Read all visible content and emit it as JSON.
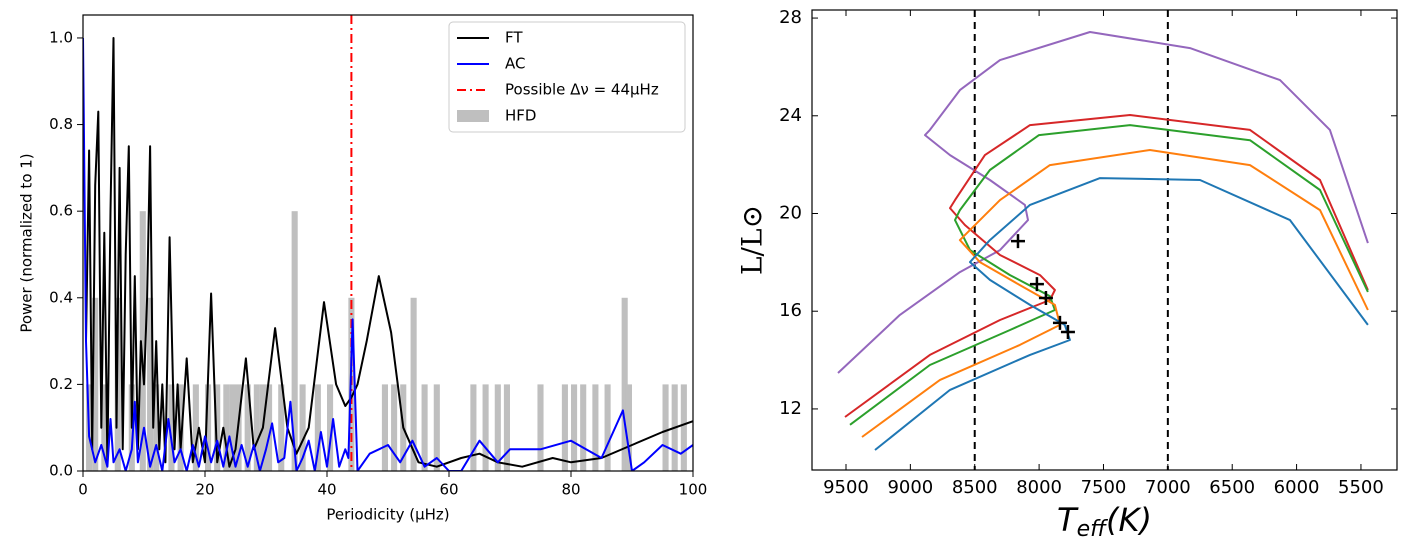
{
  "chart_data": [
    {
      "type": "line",
      "xlabel": "Periodicity (μHz)",
      "ylabel": "Power (normalized to 1)",
      "xlim": [
        0,
        100
      ],
      "ylim": [
        0,
        1.053
      ],
      "xticks": [
        0,
        20,
        40,
        60,
        80,
        100
      ],
      "yticks": [
        {
          "value": 0,
          "label": "0.0"
        },
        {
          "value": 0.2,
          "label": "0.2"
        },
        {
          "value": 0.4,
          "label": "0.4"
        },
        {
          "value": 0.6,
          "label": "0.6"
        },
        {
          "value": 0.8,
          "label": "0.8"
        },
        {
          "value": 1.0,
          "label": "1.0"
        }
      ],
      "legend": "upper right",
      "bars": {
        "name": "HFD",
        "color": "#bfbfbf",
        "x": [
          1,
          2,
          3.5,
          5.7,
          8,
          9.8,
          11,
          12,
          14.5,
          16,
          18.5,
          20.5,
          22,
          23.5,
          24.5,
          25.5,
          27,
          28.5,
          29.5,
          30.5,
          32.5,
          34.7,
          36,
          38.5,
          40.5,
          44,
          49.5,
          51,
          52.5,
          54.2,
          56,
          58,
          64,
          66,
          68,
          69.5,
          75,
          79,
          80.5,
          82,
          84,
          86,
          88.8,
          89.5,
          95.5,
          97,
          98.5
        ],
        "values": [
          0.2,
          0.4,
          0.2,
          0.4,
          0.2,
          0.6,
          0.4,
          0.2,
          0.2,
          0.2,
          0.2,
          0.2,
          0.2,
          0.2,
          0.2,
          0.2,
          0.2,
          0.2,
          0.2,
          0.2,
          0.2,
          0.6,
          0.2,
          0.2,
          0.2,
          0.4,
          0.2,
          0.2,
          0.2,
          0.4,
          0.2,
          0.2,
          0.2,
          0.2,
          0.2,
          0.2,
          0.2,
          0.2,
          0.2,
          0.2,
          0.2,
          0.2,
          0.4,
          0.2,
          0.2,
          0.2,
          0.2
        ]
      },
      "series": [
        {
          "name": "FT",
          "color": "#000000",
          "x": [
            0.5,
            1,
            1.5,
            2,
            2.5,
            3,
            3.5,
            4,
            4.5,
            5,
            5.5,
            6,
            6.5,
            7,
            7.5,
            8,
            8.5,
            9,
            9.5,
            10,
            10.5,
            11,
            11.5,
            12,
            12.5,
            13,
            13.5,
            14.2,
            15,
            15.5,
            16,
            17,
            18,
            19,
            20,
            21,
            22,
            23,
            24,
            25,
            26.7,
            28,
            29.5,
            31.5,
            33.5,
            35,
            37,
            39.5,
            41.5,
            43,
            44,
            45,
            46.5,
            48.5,
            50.5,
            52.5,
            55,
            58,
            62,
            65,
            68,
            72,
            77,
            80,
            85,
            90,
            95,
            100
          ],
          "values": [
            0.3,
            0.74,
            0.05,
            0.66,
            0.83,
            0.1,
            0.55,
            0.02,
            0.6,
            1.0,
            0.1,
            0.7,
            0.05,
            0.5,
            0.75,
            0.1,
            0.45,
            0.05,
            0.3,
            0.2,
            0.4,
            0.75,
            0.1,
            0.3,
            0.05,
            0.2,
            0.02,
            0.54,
            0.05,
            0.2,
            0.05,
            0.26,
            0.02,
            0.1,
            0.02,
            0.41,
            0.02,
            0.1,
            0.01,
            0.05,
            0.26,
            0.05,
            0.1,
            0.33,
            0.1,
            0.04,
            0.1,
            0.39,
            0.2,
            0.15,
            0.17,
            0.2,
            0.3,
            0.45,
            0.32,
            0.1,
            0.02,
            0.01,
            0.03,
            0.04,
            0.02,
            0.01,
            0.03,
            0.02,
            0.03,
            0.06,
            0.09,
            0.115
          ]
        },
        {
          "name": "AC",
          "color": "#0000ff",
          "x": [
            0,
            0.5,
            1,
            2,
            3,
            4,
            4.5,
            5,
            6,
            7,
            8,
            8.5,
            9,
            10,
            11,
            12,
            13,
            14,
            15,
            16,
            17,
            18,
            19,
            20,
            21,
            22,
            23,
            24,
            25,
            26,
            27,
            28,
            29,
            30,
            31,
            32,
            33,
            34,
            35,
            36,
            37,
            38,
            39,
            40,
            41,
            42,
            43,
            43.5,
            44.2,
            45,
            47,
            50,
            52,
            54,
            56,
            58,
            60,
            62,
            65,
            68,
            70,
            75,
            80,
            85,
            88.5,
            90,
            92,
            95,
            98,
            100
          ],
          "values": [
            1.0,
            0.3,
            0.08,
            0.02,
            0.06,
            0.01,
            0.12,
            0.02,
            0.05,
            0.0,
            0.05,
            0.16,
            0.02,
            0.1,
            0.01,
            0.06,
            0.0,
            0.12,
            0.02,
            0.05,
            0.0,
            0.06,
            0.01,
            0.08,
            0.02,
            0.07,
            0.01,
            0.08,
            0.01,
            0.06,
            0.01,
            0.06,
            0.0,
            0.05,
            0.11,
            0.02,
            0.03,
            0.16,
            0.0,
            0.03,
            0.07,
            0.0,
            0.09,
            0.01,
            0.12,
            0.01,
            0.05,
            0.03,
            0.35,
            0.0,
            0.04,
            0.06,
            0.02,
            0.07,
            0.01,
            0.03,
            0.0,
            0.0,
            0.07,
            0.02,
            0.05,
            0.05,
            0.07,
            0.03,
            0.14,
            0.0,
            0.02,
            0.06,
            0.04,
            0.06
          ]
        }
      ],
      "vlines": [
        {
          "x": 44,
          "name": "Possible Δν = 44μHz",
          "color": "#ff0000",
          "style": "dashdot"
        }
      ]
    },
    {
      "type": "line",
      "xlabel": {
        "main": "T",
        "sub": "eff",
        "unit": "(K)"
      },
      "ylabel": "L/L⊙",
      "xlim": [
        9764,
        5220
      ],
      "ylim": [
        9.5,
        28.33
      ],
      "xticks": [
        9500,
        9000,
        8500,
        8000,
        7500,
        7000,
        6500,
        6000,
        5500
      ],
      "yticks": [
        12,
        16,
        20,
        24,
        28
      ],
      "series": [
        {
          "color": "#9467bd",
          "x": [
            9562,
            9081,
            8615,
            8304,
            8086,
            8110,
            8382,
            8692,
            8886,
            8848,
            8615,
            8304,
            7605,
            6828,
            6129,
            5741,
            5446
          ],
          "values": [
            13.47,
            15.85,
            17.6,
            18.5,
            19.73,
            20.35,
            21.37,
            22.39,
            23.21,
            23.42,
            25.05,
            26.28,
            27.43,
            26.77,
            25.46,
            23.42,
            18.79
          ]
        },
        {
          "color": "#d62728",
          "x": [
            9508,
            8848,
            8304,
            7916,
            7877,
            7993,
            8304,
            8576,
            8692,
            8653,
            8421,
            8071,
            7294,
            6362,
            5818,
            5446
          ],
          "values": [
            11.67,
            14.21,
            15.64,
            16.46,
            16.87,
            17.48,
            18.3,
            19.53,
            20.22,
            20.55,
            22.39,
            23.62,
            24.03,
            23.42,
            21.37,
            16.87
          ]
        },
        {
          "color": "#2ca02c",
          "x": [
            9469,
            8848,
            8226,
            7877,
            7916,
            8226,
            8537,
            8653,
            8615,
            8382,
            8001,
            7294,
            6362,
            5818,
            5446
          ],
          "values": [
            11.35,
            13.8,
            15.23,
            16.05,
            16.62,
            17.48,
            18.5,
            19.73,
            20.14,
            21.78,
            23.21,
            23.62,
            23.0,
            20.96,
            16.79
          ]
        },
        {
          "color": "#ff7f0e",
          "x": [
            9376,
            8770,
            8149,
            7838,
            7877,
            8149,
            8460,
            8615,
            8304,
            7916,
            7139,
            6362,
            5818,
            5446
          ],
          "values": [
            10.85,
            13.19,
            14.62,
            15.44,
            16.26,
            17.07,
            18.01,
            18.91,
            20.55,
            21.98,
            22.6,
            21.98,
            20.14,
            16.05
          ]
        },
        {
          "color": "#1f77b4",
          "x": [
            9275,
            8692,
            8071,
            7761,
            7800,
            8071,
            8382,
            8537,
            8382,
            8071,
            7527,
            6750,
            6051,
            5446
          ],
          "values": [
            10.32,
            12.78,
            14.21,
            14.82,
            15.44,
            16.26,
            17.28,
            18.01,
            18.91,
            20.35,
            21.45,
            21.37,
            19.73,
            15.44
          ]
        }
      ],
      "markers": {
        "color": "#000000",
        "marker": "+",
        "x": [
          8164,
          8017,
          7947,
          7838,
          7776
        ],
        "values": [
          18.87,
          17.11,
          16.54,
          15.52,
          15.15
        ]
      },
      "vlines": [
        {
          "x": 8500,
          "color": "#000000",
          "style": "dashed"
        },
        {
          "x": 7000,
          "color": "#000000",
          "style": "dashed"
        }
      ]
    }
  ]
}
